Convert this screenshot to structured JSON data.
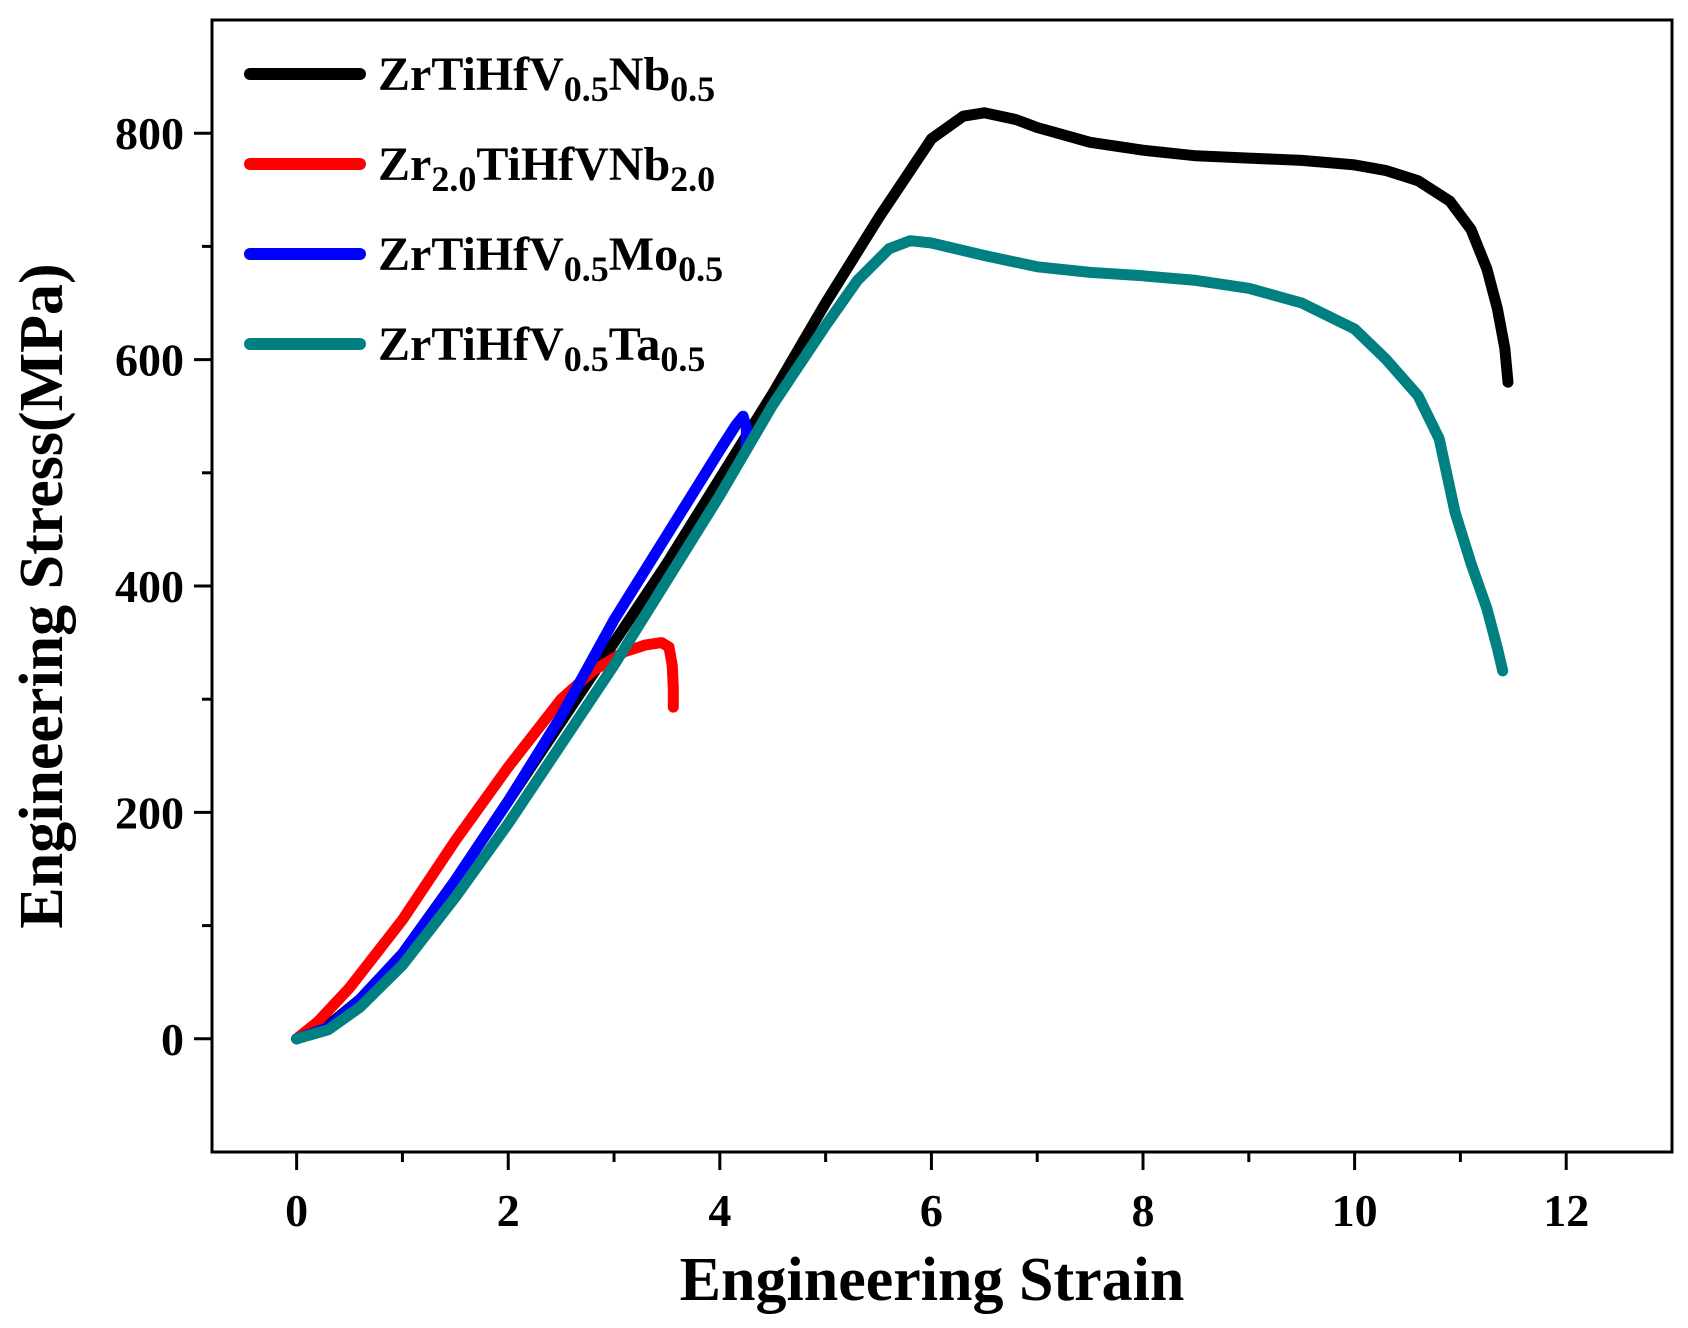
{
  "chart_data": {
    "type": "line",
    "title": "",
    "xlabel": "Engineering Strain",
    "ylabel": "Engineering Stress(MPa)",
    "xlim": [
      -0.8,
      13.0
    ],
    "ylim": [
      -100,
      900
    ],
    "x_ticks": [
      0,
      2,
      4,
      6,
      8,
      10,
      12
    ],
    "x_tick_labels": [
      "0",
      "2",
      "4",
      "6",
      "8",
      "10",
      "12"
    ],
    "x_minor_ticks": [
      1,
      3,
      5,
      7,
      9,
      11
    ],
    "y_ticks": [
      0,
      200,
      400,
      600,
      800
    ],
    "y_tick_labels": [
      "0",
      "200",
      "400",
      "600",
      "800"
    ],
    "y_minor_ticks": [
      100,
      300,
      500,
      700
    ],
    "grid": false,
    "legend_position": "top-left",
    "series": [
      {
        "name": "ZrTiHfV0.5Nb0.5",
        "legend": [
          {
            "t": "ZrTiHfV",
            "sub": false
          },
          {
            "t": "0.5",
            "sub": true
          },
          {
            "t": "Nb",
            "sub": false
          },
          {
            "t": "0.5",
            "sub": true
          }
        ],
        "color": "#000000",
        "x": [
          0,
          0.3,
          0.6,
          1.0,
          1.5,
          2.0,
          2.5,
          3.0,
          3.5,
          4.0,
          4.5,
          5.0,
          5.5,
          6.0,
          6.3,
          6.5,
          6.8,
          7.0,
          7.5,
          8.0,
          8.5,
          9.0,
          9.5,
          10.0,
          10.3,
          10.6,
          10.9,
          11.1,
          11.25,
          11.35,
          11.42,
          11.45
        ],
        "y": [
          0,
          12,
          35,
          75,
          140,
          210,
          280,
          350,
          420,
          495,
          570,
          650,
          725,
          795,
          815,
          818,
          812,
          805,
          792,
          785,
          780,
          778,
          776,
          772,
          767,
          758,
          740,
          715,
          680,
          645,
          610,
          580
        ]
      },
      {
        "name": "Zr2.0TiHfVNb2.0",
        "legend": [
          {
            "t": "Zr",
            "sub": false
          },
          {
            "t": "2.0",
            "sub": true
          },
          {
            "t": "TiHfVNb",
            "sub": false
          },
          {
            "t": "2.0",
            "sub": true
          }
        ],
        "color": "#ff0000",
        "x": [
          0,
          0.2,
          0.5,
          1.0,
          1.5,
          2.0,
          2.5,
          2.8,
          3.1,
          3.3,
          3.45,
          3.52,
          3.55,
          3.56,
          3.56
        ],
        "y": [
          0,
          15,
          45,
          105,
          175,
          240,
          300,
          325,
          342,
          348,
          350,
          346,
          330,
          310,
          293
        ]
      },
      {
        "name": "ZrTiHfV0.5Mo0.5",
        "legend": [
          {
            "t": "ZrTiHfV",
            "sub": false
          },
          {
            "t": "0.5",
            "sub": true
          },
          {
            "t": "Mo",
            "sub": false
          },
          {
            "t": "0.5",
            "sub": true
          }
        ],
        "color": "#0000ff",
        "x": [
          0,
          0.3,
          0.6,
          1.0,
          1.5,
          2.0,
          2.5,
          3.0,
          3.5,
          3.8,
          4.0,
          4.15,
          4.22,
          4.25,
          4.25
        ],
        "y": [
          0,
          10,
          35,
          75,
          140,
          210,
          285,
          370,
          445,
          490,
          520,
          542,
          550,
          540,
          522
        ]
      },
      {
        "name": "ZrTiHfV0.5Ta0.5",
        "legend": [
          {
            "t": "ZrTiHfV",
            "sub": false
          },
          {
            "t": "0.5",
            "sub": true
          },
          {
            "t": "Ta",
            "sub": false
          },
          {
            "t": "0.5",
            "sub": true
          }
        ],
        "color": "#008080",
        "x": [
          0,
          0.3,
          0.6,
          1.0,
          1.5,
          2.0,
          2.5,
          3.0,
          3.5,
          4.0,
          4.5,
          5.0,
          5.3,
          5.6,
          5.8,
          6.0,
          6.5,
          7.0,
          7.5,
          8.0,
          8.5,
          9.0,
          9.5,
          10.0,
          10.3,
          10.6,
          10.8,
          10.95,
          11.1,
          11.25,
          11.35,
          11.4
        ],
        "y": [
          0,
          8,
          28,
          65,
          125,
          190,
          260,
          330,
          405,
          480,
          560,
          630,
          670,
          698,
          705,
          703,
          692,
          682,
          677,
          674,
          670,
          663,
          650,
          627,
          600,
          568,
          530,
          465,
          420,
          380,
          345,
          325
        ]
      }
    ]
  }
}
